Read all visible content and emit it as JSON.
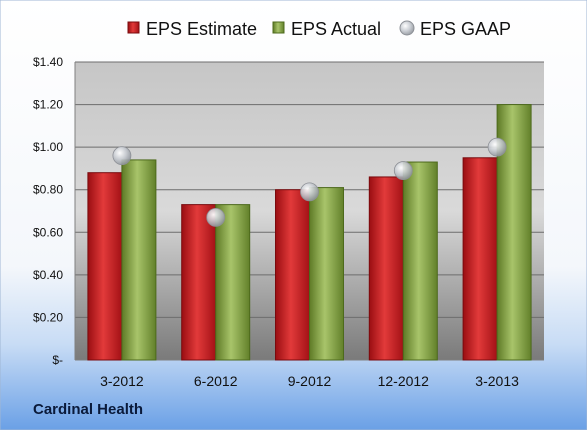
{
  "company": "Cardinal Health",
  "chart_data": {
    "type": "bar",
    "categories": [
      "3-2012",
      "6-2012",
      "9-2012",
      "12-2012",
      "3-2013"
    ],
    "series": [
      {
        "name": "EPS Estimate",
        "kind": "bar",
        "color": "#c0161b",
        "values": [
          0.88,
          0.73,
          0.8,
          0.86,
          0.95
        ]
      },
      {
        "name": "EPS Actual",
        "kind": "bar",
        "color": "#7a9a3a",
        "values": [
          0.94,
          0.73,
          0.81,
          0.93,
          1.2
        ]
      },
      {
        "name": "EPS GAAP",
        "kind": "marker",
        "color": "#b9bdc3",
        "values": [
          0.96,
          0.67,
          0.79,
          0.89,
          1.0
        ]
      }
    ],
    "yticks": [
      "$-",
      "$0.20",
      "$0.40",
      "$0.60",
      "$0.80",
      "$1.00",
      "$1.20",
      "$1.40"
    ],
    "ylim": [
      0,
      1.4
    ],
    "grid": true,
    "legend": "top"
  }
}
